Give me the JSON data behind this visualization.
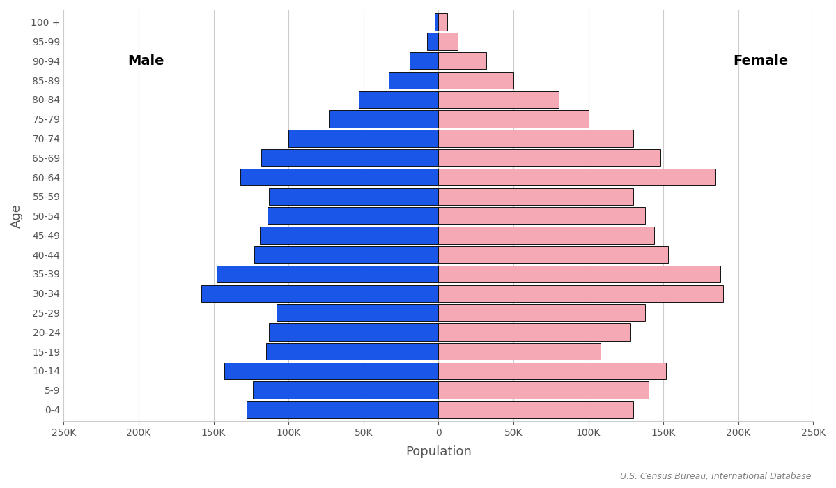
{
  "age_groups": [
    "0-4",
    "5-9",
    "10-14",
    "15-19",
    "20-24",
    "25-29",
    "30-34",
    "35-39",
    "40-44",
    "45-49",
    "50-54",
    "55-59",
    "60-64",
    "65-69",
    "70-74",
    "75-79",
    "80-84",
    "85-89",
    "90-94",
    "95-99",
    "100 +"
  ],
  "male": [
    128000,
    124000,
    143000,
    115000,
    113000,
    108000,
    158000,
    148000,
    123000,
    119000,
    114000,
    113000,
    132000,
    118000,
    100000,
    73000,
    53000,
    33000,
    19000,
    7500,
    2500
  ],
  "female": [
    130000,
    140000,
    152000,
    108000,
    128000,
    138000,
    190000,
    188000,
    153000,
    144000,
    138000,
    130000,
    185000,
    148000,
    130000,
    100000,
    80000,
    50000,
    32000,
    13000,
    6000
  ],
  "male_color": "#1a56e8",
  "female_color": "#f4a9b4",
  "edge_color": "#111111",
  "xlabel": "Population",
  "ylabel": "Age",
  "xlim": 250000,
  "male_label": "Male",
  "female_label": "Female",
  "source": "U.S. Census Bureau, International Database",
  "bg_color": "#ffffff",
  "grid_color": "#cccccc",
  "tick_label_color": "#555555",
  "axis_label_color": "#555555"
}
